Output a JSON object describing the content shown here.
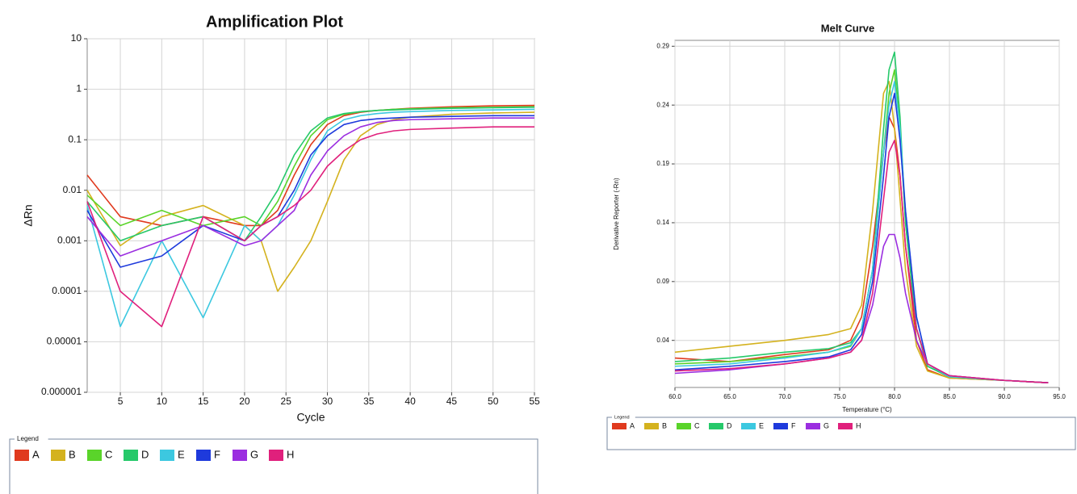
{
  "chart_data": [
    {
      "type": "line",
      "title": "Amplification Plot",
      "x_label": "Cycle",
      "y_label": "ΔRn",
      "log_y": true,
      "grid": true,
      "legend_title": "Legend",
      "x": [
        1,
        5,
        10,
        15,
        20,
        22,
        24,
        26,
        28,
        30,
        32,
        34,
        36,
        38,
        40,
        45,
        50,
        55
      ],
      "xlim": [
        1,
        55
      ],
      "xticks": [
        5,
        10,
        15,
        20,
        25,
        30,
        35,
        40,
        45,
        50,
        55
      ],
      "ylim": [
        1e-06,
        10
      ],
      "yticks": [
        1e-06,
        1e-05,
        0.0001,
        0.001,
        0.01,
        0.1,
        1,
        10
      ],
      "series": [
        {
          "name": "A",
          "color": "#e03a1e",
          "values": [
            0.02,
            0.003,
            0.002,
            0.003,
            0.002,
            0.002,
            0.004,
            0.02,
            0.08,
            0.2,
            0.3,
            0.35,
            0.38,
            0.4,
            0.42,
            0.45,
            0.47,
            0.48
          ]
        },
        {
          "name": "B",
          "color": "#d4b21e",
          "values": [
            0.01,
            0.0008,
            0.003,
            0.005,
            0.002,
            0.001,
            0.0001,
            0.0003,
            0.001,
            0.006,
            0.04,
            0.12,
            0.2,
            0.25,
            0.28,
            0.32,
            0.34,
            0.35
          ]
        },
        {
          "name": "C",
          "color": "#5ad42a",
          "values": [
            0.008,
            0.002,
            0.004,
            0.002,
            0.003,
            0.002,
            0.006,
            0.03,
            0.12,
            0.25,
            0.32,
            0.36,
            0.38,
            0.4,
            0.41,
            0.43,
            0.44,
            0.45
          ]
        },
        {
          "name": "D",
          "color": "#26c96a",
          "values": [
            0.006,
            0.001,
            0.002,
            0.003,
            0.001,
            0.003,
            0.01,
            0.05,
            0.15,
            0.27,
            0.33,
            0.36,
            0.38,
            0.39,
            0.4,
            0.42,
            0.43,
            0.44
          ]
        },
        {
          "name": "E",
          "color": "#3cc8e0",
          "values": [
            0.005,
            2e-05,
            0.001,
            3e-05,
            0.002,
            0.001,
            0.002,
            0.008,
            0.04,
            0.15,
            0.25,
            0.3,
            0.33,
            0.35,
            0.36,
            0.38,
            0.39,
            0.4
          ]
        },
        {
          "name": "F",
          "color": "#1e3adc",
          "values": [
            0.004,
            0.0003,
            0.0005,
            0.002,
            0.001,
            0.002,
            0.003,
            0.01,
            0.05,
            0.12,
            0.2,
            0.24,
            0.26,
            0.27,
            0.28,
            0.29,
            0.3,
            0.3
          ]
        },
        {
          "name": "G",
          "color": "#9b2ee0",
          "values": [
            0.003,
            0.0005,
            0.001,
            0.002,
            0.0008,
            0.001,
            0.002,
            0.004,
            0.02,
            0.06,
            0.12,
            0.18,
            0.22,
            0.24,
            0.25,
            0.26,
            0.27,
            0.27
          ]
        },
        {
          "name": "H",
          "color": "#e0207c",
          "values": [
            0.006,
            0.0001,
            2e-05,
            0.003,
            0.001,
            0.002,
            0.003,
            0.005,
            0.01,
            0.03,
            0.06,
            0.1,
            0.13,
            0.15,
            0.16,
            0.17,
            0.18,
            0.18
          ]
        }
      ]
    },
    {
      "type": "line",
      "title": "Melt Curve",
      "x_label": "Temperature (°C)",
      "y_label": "Derivative Reporter (-Rn)",
      "log_y": false,
      "grid": true,
      "legend_title": "Legend",
      "x": [
        60,
        65,
        70,
        74,
        76,
        77,
        78,
        79,
        79.5,
        80,
        80.5,
        81,
        82,
        83,
        85,
        90,
        94
      ],
      "xlim": [
        60,
        95
      ],
      "xticks": [
        {
          "value": 60,
          "label": "60.0"
        },
        {
          "value": 65,
          "label": "65.0"
        },
        {
          "value": 70,
          "label": "70.0"
        },
        {
          "value": 75,
          "label": "75.0"
        },
        {
          "value": 80,
          "label": "80.0"
        },
        {
          "value": 85,
          "label": "85.0"
        },
        {
          "value": 90,
          "label": "90.0"
        },
        {
          "value": 95,
          "label": "95.0"
        }
      ],
      "ylim": [
        0,
        0.295
      ],
      "yticks": [
        0.04,
        0.09,
        0.14,
        0.19,
        0.24,
        0.29
      ],
      "series": [
        {
          "name": "A",
          "color": "#e03a1e",
          "values": [
            0.025,
            0.022,
            0.028,
            0.032,
            0.04,
            0.06,
            0.12,
            0.2,
            0.23,
            0.22,
            0.18,
            0.12,
            0.04,
            0.015,
            0.008,
            0.006,
            0.004
          ]
        },
        {
          "name": "B",
          "color": "#d4b21e",
          "values": [
            0.03,
            0.035,
            0.04,
            0.045,
            0.05,
            0.07,
            0.15,
            0.25,
            0.26,
            0.22,
            0.16,
            0.1,
            0.035,
            0.014,
            0.008,
            0.006,
            0.004
          ]
        },
        {
          "name": "C",
          "color": "#5ad42a",
          "values": [
            0.02,
            0.022,
            0.026,
            0.03,
            0.035,
            0.05,
            0.1,
            0.2,
            0.25,
            0.27,
            0.22,
            0.14,
            0.05,
            0.018,
            0.009,
            0.006,
            0.004
          ]
        },
        {
          "name": "D",
          "color": "#26c96a",
          "values": [
            0.022,
            0.025,
            0.03,
            0.033,
            0.038,
            0.05,
            0.1,
            0.22,
            0.27,
            0.285,
            0.23,
            0.14,
            0.05,
            0.018,
            0.009,
            0.006,
            0.004
          ]
        },
        {
          "name": "E",
          "color": "#3cc8e0",
          "values": [
            0.018,
            0.02,
            0.025,
            0.03,
            0.036,
            0.05,
            0.1,
            0.2,
            0.24,
            0.26,
            0.22,
            0.15,
            0.06,
            0.02,
            0.009,
            0.006,
            0.004
          ]
        },
        {
          "name": "F",
          "color": "#1e3adc",
          "values": [
            0.015,
            0.018,
            0.022,
            0.026,
            0.032,
            0.045,
            0.09,
            0.18,
            0.23,
            0.25,
            0.21,
            0.15,
            0.06,
            0.02,
            0.01,
            0.006,
            0.004
          ]
        },
        {
          "name": "G",
          "color": "#9b2ee0",
          "values": [
            0.012,
            0.015,
            0.02,
            0.025,
            0.03,
            0.04,
            0.07,
            0.12,
            0.13,
            0.13,
            0.11,
            0.08,
            0.04,
            0.02,
            0.01,
            0.006,
            0.004
          ]
        },
        {
          "name": "H",
          "color": "#e0207c",
          "values": [
            0.014,
            0.016,
            0.02,
            0.025,
            0.03,
            0.04,
            0.08,
            0.16,
            0.2,
            0.21,
            0.18,
            0.12,
            0.05,
            0.02,
            0.01,
            0.006,
            0.004
          ]
        }
      ]
    }
  ]
}
